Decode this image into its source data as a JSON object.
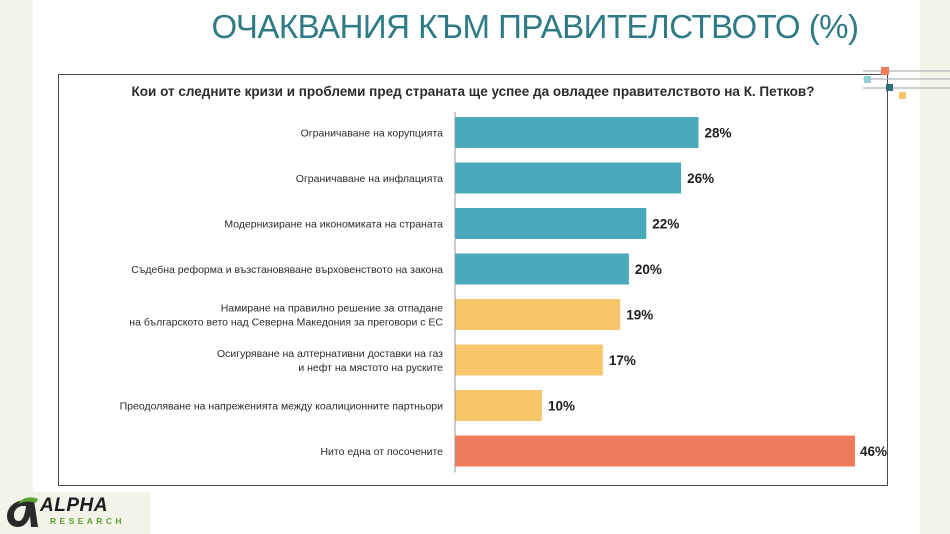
{
  "page": {
    "title": "ОЧАКВАНИЯ КЪМ ПРАВИТЕЛСТВОТО (%)"
  },
  "logo": {
    "name": "ALPHA",
    "subtitle": "RESEARCH"
  },
  "chart_data": {
    "type": "bar",
    "orientation": "horizontal",
    "title": "Кои от следните кризи и проблеми пред страната ще успее да овладее правителството на К. Петков?",
    "xlabel": "",
    "ylabel": "",
    "xlim": [
      0,
      46
    ],
    "grid": false,
    "value_suffix": "%",
    "categories": [
      [
        "Ограничаване на корупцията"
      ],
      [
        "Ограничаване на инфлацията"
      ],
      [
        "Модернизиране на икономиката на страната"
      ],
      [
        "Съдебна реформа и възстановяване върховенството на закона"
      ],
      [
        "Намиране на правилно решение за отпадане",
        "на българското вето над Северна Македония за преговори с ЕС"
      ],
      [
        "Осигуряване на алтернативни доставки на газ",
        "и нефт на мястото на руските"
      ],
      [
        "Преодоляване на напреженията между коалиционните партньори"
      ],
      [
        "Нито една от посочените"
      ]
    ],
    "values": [
      28,
      26,
      22,
      20,
      19,
      17,
      10,
      46
    ],
    "colors": [
      "#4ba9be",
      "#4ba9be",
      "#4ba9be",
      "#4ba9be",
      "#f7c66b",
      "#f7c66b",
      "#f7c66b",
      "#f07b5b"
    ]
  }
}
